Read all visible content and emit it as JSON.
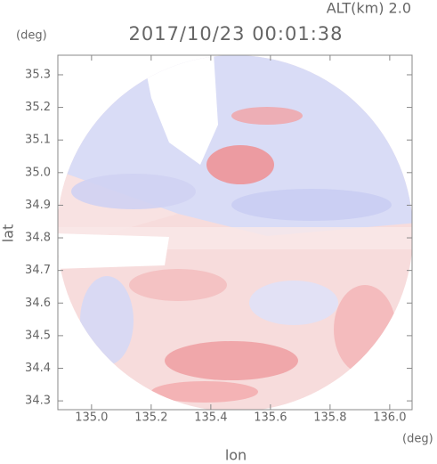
{
  "chart_data": {
    "type": "radar-image",
    "title": "2017/10/23 00:01:38",
    "subtitle": "ALT(km) 2.0",
    "x_label": "lon",
    "y_label": "lat",
    "x_unit": "(deg)",
    "y_unit": "(deg)",
    "xlim": [
      134.887,
      136.075
    ],
    "ylim": [
      34.273,
      35.36
    ],
    "xticks": [
      {
        "value": 135,
        "label": "135.0"
      },
      135.2,
      135.4,
      135.6,
      135.8,
      {
        "value": 136,
        "label": "136.0"
      }
    ],
    "yticks": [
      34.3,
      34.4,
      34.5,
      34.6,
      34.7,
      34.8,
      34.9,
      {
        "value": 35,
        "label": "35.0"
      },
      35.1,
      35.2,
      35.3
    ]
  }
}
